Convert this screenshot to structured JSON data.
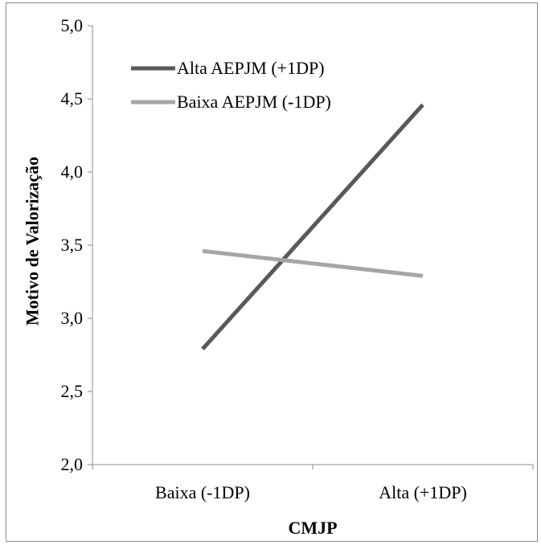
{
  "chart_data": {
    "type": "line",
    "title": "",
    "xlabel": "CMJP",
    "ylabel": "Motivo de Valorização",
    "categories": [
      "Baixa (-1DP)",
      "Alta (+1DP)"
    ],
    "ylim": [
      2.0,
      5.0
    ],
    "yticks": [
      "2,0",
      "2,5",
      "3,0",
      "3,5",
      "4,0",
      "4,5",
      "5,0"
    ],
    "ytick_values": [
      2.0,
      2.5,
      3.0,
      3.5,
      4.0,
      4.5,
      5.0
    ],
    "grid": false,
    "legend_position": "top-left",
    "series": [
      {
        "name": "Alta AEPJM (+1DP)",
        "values": [
          2.79,
          4.46
        ],
        "color": "#595959"
      },
      {
        "name": "Baixa AEPJM (-1DP)",
        "values": [
          3.46,
          3.29
        ],
        "color": "#a6a6a6"
      }
    ]
  }
}
